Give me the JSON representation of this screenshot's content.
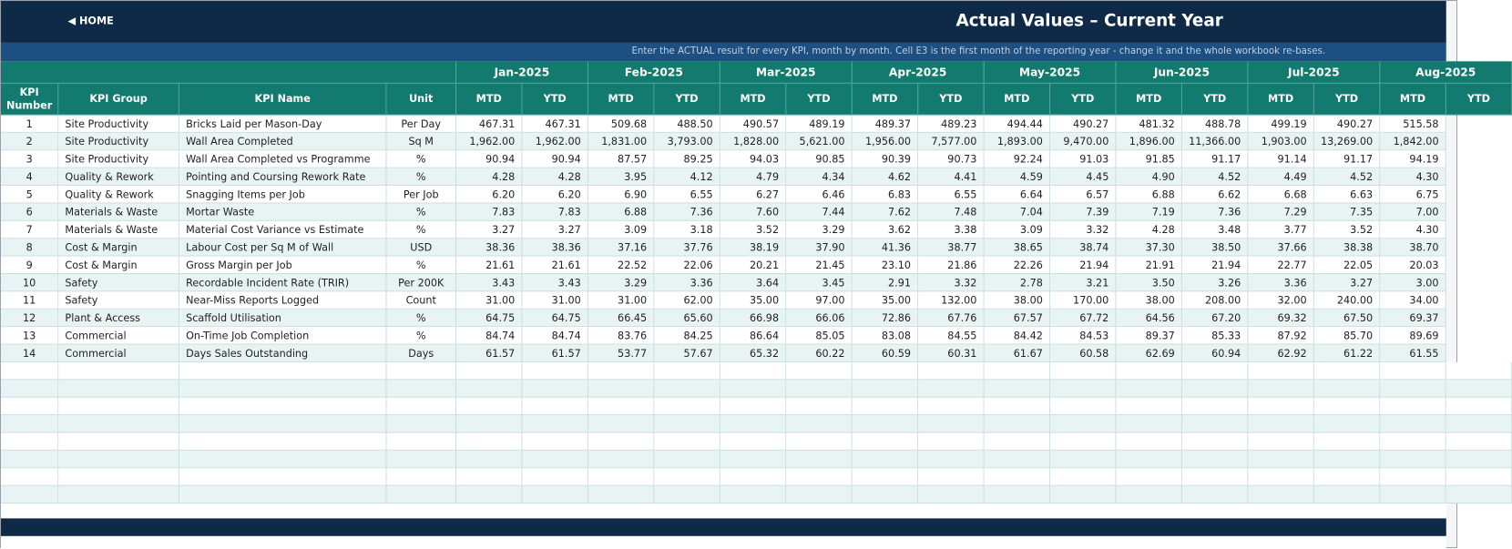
{
  "header": {
    "home": "HOME",
    "title": "Actual Values  –  Current Year",
    "subtitle": "Enter the ACTUAL result for every KPI, month by month. Cell E3 is the first month of the reporting year - change it and the whole workbook re-bases."
  },
  "table": {
    "columns": [
      "KPI Number",
      "KPI Group",
      "KPI Name",
      "Unit"
    ],
    "periods": [
      "MTD",
      "YTD"
    ],
    "months": [
      "Jan-2025",
      "Feb-2025",
      "Mar-2025",
      "Apr-2025",
      "May-2025",
      "Jun-2025",
      "Jul-2025",
      "Aug-2025"
    ],
    "rows": [
      [
        1,
        "Site Productivity",
        "Bricks Laid per Mason-Day",
        "Per Day",
        "467.31",
        "467.31",
        "509.68",
        "488.50",
        "490.57",
        "489.19",
        "489.37",
        "489.23",
        "494.44",
        "490.27",
        "481.32",
        "488.78",
        "499.19",
        "490.27",
        "515.58"
      ],
      [
        2,
        "Site Productivity",
        "Wall Area Completed",
        "Sq M",
        "1,962.00",
        "1,962.00",
        "1,831.00",
        "3,793.00",
        "1,828.00",
        "5,621.00",
        "1,956.00",
        "7,577.00",
        "1,893.00",
        "9,470.00",
        "1,896.00",
        "11,366.00",
        "1,903.00",
        "13,269.00",
        "1,842.00"
      ],
      [
        3,
        "Site Productivity",
        "Wall Area Completed vs Programme",
        "%",
        "90.94",
        "90.94",
        "87.57",
        "89.25",
        "94.03",
        "90.85",
        "90.39",
        "90.73",
        "92.24",
        "91.03",
        "91.85",
        "91.17",
        "91.14",
        "91.17",
        "94.19"
      ],
      [
        4,
        "Quality & Rework",
        "Pointing and Coursing Rework Rate",
        "%",
        "4.28",
        "4.28",
        "3.95",
        "4.12",
        "4.79",
        "4.34",
        "4.62",
        "4.41",
        "4.59",
        "4.45",
        "4.90",
        "4.52",
        "4.49",
        "4.52",
        "4.30"
      ],
      [
        5,
        "Quality & Rework",
        "Snagging Items per Job",
        "Per Job",
        "6.20",
        "6.20",
        "6.90",
        "6.55",
        "6.27",
        "6.46",
        "6.83",
        "6.55",
        "6.64",
        "6.57",
        "6.88",
        "6.62",
        "6.68",
        "6.63",
        "6.75"
      ],
      [
        6,
        "Materials & Waste",
        "Mortar Waste",
        "%",
        "7.83",
        "7.83",
        "6.88",
        "7.36",
        "7.60",
        "7.44",
        "7.62",
        "7.48",
        "7.04",
        "7.39",
        "7.19",
        "7.36",
        "7.29",
        "7.35",
        "7.00"
      ],
      [
        7,
        "Materials & Waste",
        "Material Cost Variance vs Estimate",
        "%",
        "3.27",
        "3.27",
        "3.09",
        "3.18",
        "3.52",
        "3.29",
        "3.62",
        "3.38",
        "3.09",
        "3.32",
        "4.28",
        "3.48",
        "3.77",
        "3.52",
        "4.30"
      ],
      [
        8,
        "Cost & Margin",
        "Labour Cost per Sq M of Wall",
        "USD",
        "38.36",
        "38.36",
        "37.16",
        "37.76",
        "38.19",
        "37.90",
        "41.36",
        "38.77",
        "38.65",
        "38.74",
        "37.30",
        "38.50",
        "37.66",
        "38.38",
        "38.70"
      ],
      [
        9,
        "Cost & Margin",
        "Gross Margin per Job",
        "%",
        "21.61",
        "21.61",
        "22.52",
        "22.06",
        "20.21",
        "21.45",
        "23.10",
        "21.86",
        "22.26",
        "21.94",
        "21.91",
        "21.94",
        "22.77",
        "22.05",
        "20.03"
      ],
      [
        10,
        "Safety",
        "Recordable Incident Rate (TRIR)",
        "Per 200K",
        "3.43",
        "3.43",
        "3.29",
        "3.36",
        "3.64",
        "3.45",
        "2.91",
        "3.32",
        "2.78",
        "3.21",
        "3.50",
        "3.26",
        "3.36",
        "3.27",
        "3.00"
      ],
      [
        11,
        "Safety",
        "Near-Miss Reports Logged",
        "Count",
        "31.00",
        "31.00",
        "31.00",
        "62.00",
        "35.00",
        "97.00",
        "35.00",
        "132.00",
        "38.00",
        "170.00",
        "38.00",
        "208.00",
        "32.00",
        "240.00",
        "34.00"
      ],
      [
        12,
        "Plant & Access",
        "Scaffold Utilisation",
        "%",
        "64.75",
        "64.75",
        "66.45",
        "65.60",
        "66.98",
        "66.06",
        "72.86",
        "67.76",
        "67.57",
        "67.72",
        "64.56",
        "67.20",
        "69.32",
        "67.50",
        "69.37"
      ],
      [
        13,
        "Commercial",
        "On-Time Job Completion",
        "%",
        "84.74",
        "84.74",
        "83.76",
        "84.25",
        "86.64",
        "85.05",
        "83.08",
        "84.55",
        "84.42",
        "84.53",
        "89.37",
        "85.33",
        "87.92",
        "85.70",
        "89.69"
      ],
      [
        14,
        "Commercial",
        "Days Sales Outstanding",
        "Days",
        "61.57",
        "61.57",
        "53.77",
        "57.67",
        "65.32",
        "60.22",
        "60.59",
        "60.31",
        "61.67",
        "60.58",
        "62.69",
        "60.94",
        "62.92",
        "61.22",
        "61.55"
      ]
    ]
  }
}
